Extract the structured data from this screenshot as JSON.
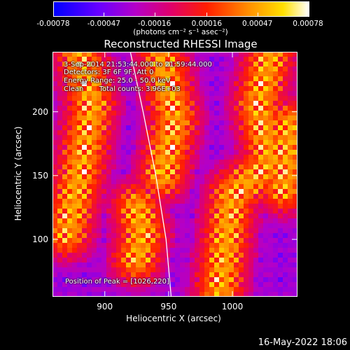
{
  "chart_data": {
    "type": "heatmap",
    "title": "Reconstructed RHESSI Image",
    "xlabel": "Heliocentric X (arcsec)",
    "ylabel": "Heliocentric Y (arcsec)",
    "xlim": [
      859,
      1051
    ],
    "ylim": [
      55,
      247
    ],
    "x_ticks": [
      900,
      950,
      1000
    ],
    "y_ticks": [
      100,
      150,
      200
    ],
    "colorbar": {
      "unit_label": "(photons cm⁻² s⁻¹ asec⁻²)",
      "range": [
        -0.00078,
        0.00078
      ],
      "ticks": [
        {
          "value": -0.00078,
          "label": "-0.00078"
        },
        {
          "value": -0.00047,
          "label": "-0.00047"
        },
        {
          "value": -0.00016,
          "label": "-0.00016"
        },
        {
          "value": 0.00016,
          "label": "0.00016"
        },
        {
          "value": 0.00047,
          "label": "0.00047"
        },
        {
          "value": 0.00078,
          "label": "0.00078"
        }
      ]
    },
    "annotations": [
      "3-Sep-2014 21:53:44.000 to 21:59:44.000",
      "Detectors: 3F 6F 9F, Att 0",
      "Energy Range: 25.0 - 50.0 keV",
      "Clean       Total counts: 3.96E+03"
    ],
    "peak_label": "Position of Peak = [1026,220]",
    "peak": [
      1026,
      220
    ],
    "limb_curve": [
      [
        920,
        247
      ],
      [
        930,
        200
      ],
      [
        940,
        150
      ],
      [
        948,
        100
      ],
      [
        952,
        55
      ]
    ],
    "bright_ridges": [
      [
        [
          880,
          247
        ],
        [
          890,
          205
        ],
        [
          880,
          150
        ],
        [
          870,
          105
        ]
      ],
      [
        [
          945,
          240
        ],
        [
          955,
          195
        ],
        [
          945,
          150
        ]
      ],
      [
        [
          925,
          125
        ],
        [
          930,
          105
        ],
        [
          925,
          85
        ]
      ],
      [
        [
          1030,
          247
        ],
        [
          1020,
          205
        ],
        [
          1030,
          160
        ],
        [
          1000,
          135
        ],
        [
          995,
          100
        ],
        [
          990,
          60
        ]
      ],
      [
        [
          1045,
          190
        ],
        [
          1040,
          140
        ]
      ]
    ]
  },
  "timestamp": "16-May-2022 18:06"
}
